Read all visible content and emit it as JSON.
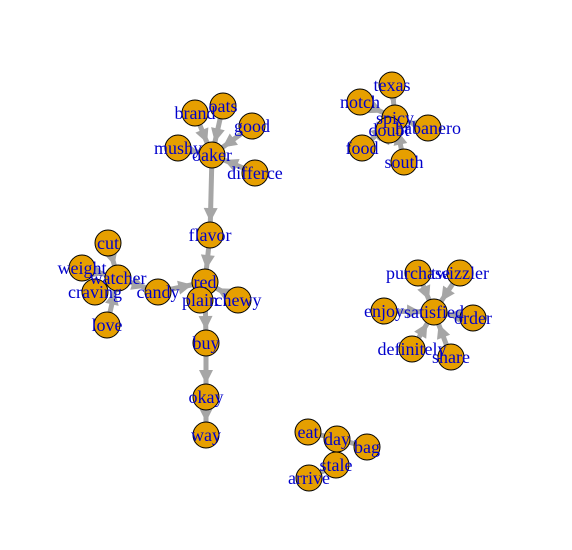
{
  "style": {
    "node_fill": "#E69F00",
    "node_stroke": "#000000",
    "edge_color": "#A6A6A6",
    "label_color": "#0000CC"
  },
  "graph": {
    "directed": true,
    "nodes": [
      {
        "id": "brand",
        "label": "brand"
      },
      {
        "id": "oats",
        "label": "oats"
      },
      {
        "id": "good",
        "label": "good"
      },
      {
        "id": "mushy",
        "label": "mushy"
      },
      {
        "id": "quaker",
        "label": "oaker"
      },
      {
        "id": "difference",
        "label": "differce"
      },
      {
        "id": "flavor",
        "label": "flavor"
      },
      {
        "id": "cut",
        "label": "cut"
      },
      {
        "id": "weight",
        "label": "weight"
      },
      {
        "id": "watcher",
        "label": "watcher"
      },
      {
        "id": "craving",
        "label": "craving"
      },
      {
        "id": "candy",
        "label": "candy"
      },
      {
        "id": "love",
        "label": "love"
      },
      {
        "id": "red",
        "label": "red"
      },
      {
        "id": "plain",
        "label": "plain"
      },
      {
        "id": "chewy",
        "label": "chewy"
      },
      {
        "id": "buy",
        "label": "buy"
      },
      {
        "id": "okay",
        "label": "okay"
      },
      {
        "id": "way",
        "label": "way"
      },
      {
        "id": "texas",
        "label": "texas"
      },
      {
        "id": "notch",
        "label": "notch"
      },
      {
        "id": "spicy",
        "label": "spicy"
      },
      {
        "id": "doubt",
        "label": "doubt"
      },
      {
        "id": "habanero",
        "label": "habanero"
      },
      {
        "id": "food",
        "label": "food"
      },
      {
        "id": "south",
        "label": "south"
      },
      {
        "id": "purchase",
        "label": "purchase"
      },
      {
        "id": "twizzler",
        "label": "twizzler"
      },
      {
        "id": "enjoy",
        "label": "enjoy"
      },
      {
        "id": "satisfied",
        "label": "satisfied"
      },
      {
        "id": "order",
        "label": "order"
      },
      {
        "id": "definitely",
        "label": "definitely"
      },
      {
        "id": "share",
        "label": "share"
      },
      {
        "id": "eat",
        "label": "eat"
      },
      {
        "id": "day",
        "label": "day"
      },
      {
        "id": "bag",
        "label": "bag"
      },
      {
        "id": "stale",
        "label": "stale"
      },
      {
        "id": "arrive",
        "label": "arrive"
      }
    ],
    "edges": [
      {
        "from": "brand",
        "to": "quaker"
      },
      {
        "from": "oats",
        "to": "quaker"
      },
      {
        "from": "good",
        "to": "quaker"
      },
      {
        "from": "mushy",
        "to": "quaker"
      },
      {
        "from": "difference",
        "to": "quaker"
      },
      {
        "from": "quaker",
        "to": "flavor"
      },
      {
        "from": "flavor",
        "to": "red"
      },
      {
        "from": "cut",
        "to": "watcher"
      },
      {
        "from": "weight",
        "to": "watcher"
      },
      {
        "from": "craving",
        "to": "watcher"
      },
      {
        "from": "love",
        "to": "watcher"
      },
      {
        "from": "watcher",
        "to": "candy"
      },
      {
        "from": "candy",
        "to": "red"
      },
      {
        "from": "plain",
        "to": "red"
      },
      {
        "from": "chewy",
        "to": "red"
      },
      {
        "from": "red",
        "to": "buy"
      },
      {
        "from": "buy",
        "to": "okay"
      },
      {
        "from": "okay",
        "to": "way"
      },
      {
        "from": "texas",
        "to": "spicy"
      },
      {
        "from": "notch",
        "to": "spicy"
      },
      {
        "from": "doubt",
        "to": "spicy"
      },
      {
        "from": "habanero",
        "to": "spicy"
      },
      {
        "from": "food",
        "to": "spicy"
      },
      {
        "from": "south",
        "to": "spicy"
      },
      {
        "from": "purchase",
        "to": "satisfied"
      },
      {
        "from": "twizzler",
        "to": "satisfied"
      },
      {
        "from": "enjoy",
        "to": "satisfied"
      },
      {
        "from": "order",
        "to": "satisfied"
      },
      {
        "from": "definitely",
        "to": "satisfied"
      },
      {
        "from": "share",
        "to": "satisfied"
      },
      {
        "from": "eat",
        "to": "day"
      },
      {
        "from": "day",
        "to": "bag"
      },
      {
        "from": "day",
        "to": "stale"
      },
      {
        "from": "stale",
        "to": "arrive"
      }
    ]
  }
}
